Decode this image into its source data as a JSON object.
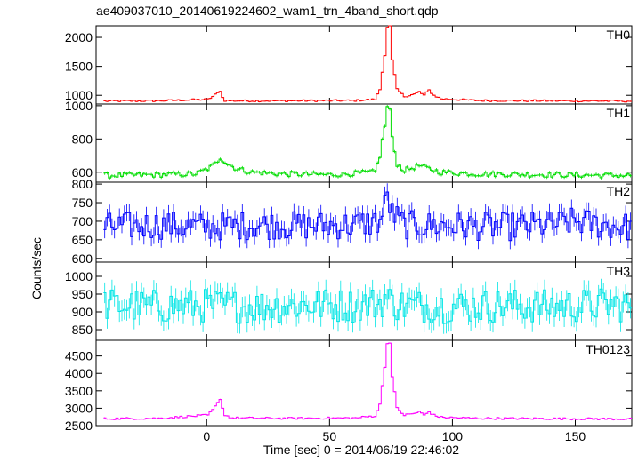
{
  "title": "ae409037010_20140619224602_wam1_trn_4band_short.qdp",
  "ylabel": "Counts/sec",
  "xlabel": "Time [sec] 0 = 2014/06/19 22:46:02",
  "chart_data": {
    "type": "line",
    "title": "ae409037010_20140619224602_wam1_trn_4band_short.qdp",
    "xlabel": "Time [sec] 0 = 2014/06/19 22:46:02",
    "ylabel": "Counts/sec",
    "xlim": [
      -45,
      173
    ],
    "xticks": [
      0,
      50,
      100,
      150
    ],
    "grid": false,
    "legend": "none",
    "panels": [
      {
        "name": "TH0",
        "color": "#ff0000",
        "ylim": [
          850,
          2200
        ],
        "yticks": [
          1000,
          1500,
          2000
        ],
        "x": [
          -42,
          -20,
          0,
          2,
          4,
          5,
          6,
          7,
          10,
          30,
          60,
          68,
          70,
          72,
          73,
          74,
          75,
          77,
          80,
          84,
          86,
          88,
          90,
          92,
          95,
          110,
          140,
          172
        ],
        "values": [
          900,
          905,
          930,
          980,
          1040,
          1080,
          960,
          910,
          905,
          905,
          910,
          930,
          1100,
          1700,
          2180,
          2200,
          1600,
          1100,
          980,
          1020,
          1060,
          1000,
          1090,
          1000,
          940,
          910,
          905,
          900
        ]
      },
      {
        "name": "TH1",
        "color": "#00dd00",
        "ylim": [
          540,
          1010
        ],
        "yticks": [
          600,
          800,
          1000
        ],
        "x": [
          -42,
          -20,
          -5,
          0,
          3,
          5,
          8,
          12,
          18,
          30,
          50,
          68,
          70,
          72,
          73,
          74,
          75,
          77,
          80,
          86,
          90,
          95,
          110,
          140,
          172
        ],
        "values": [
          580,
          585,
          590,
          620,
          650,
          690,
          650,
          620,
          600,
          590,
          585,
          600,
          700,
          880,
          990,
          980,
          800,
          650,
          610,
          640,
          620,
          600,
          590,
          585,
          580
        ]
      },
      {
        "name": "TH2",
        "color": "#0000ff",
        "ylim": [
          590,
          805
        ],
        "yticks": [
          600,
          650,
          700,
          750,
          800
        ],
        "x": [
          -42,
          -20,
          0,
          20,
          40,
          60,
          70,
          72,
          73,
          75,
          80,
          100,
          120,
          140,
          150,
          160,
          172
        ],
        "values": [
          685,
          690,
          685,
          690,
          688,
          690,
          700,
          740,
          770,
          720,
          690,
          688,
          685,
          690,
          700,
          690,
          685
        ]
      },
      {
        "name": "TH3",
        "color": "#00e5e5",
        "ylim": [
          820,
          1040
        ],
        "yticks": [
          850,
          900,
          950,
          1000
        ],
        "x": [
          -42,
          -20,
          0,
          20,
          40,
          60,
          70,
          72,
          75,
          80,
          100,
          120,
          140,
          160,
          172
        ],
        "values": [
          920,
          915,
          918,
          915,
          920,
          918,
          925,
          940,
          925,
          918,
          915,
          918,
          915,
          920,
          918
        ]
      },
      {
        "name": "TH0123",
        "color": "#ff00ff",
        "ylim": [
          2500,
          4950
        ],
        "yticks": [
          2500,
          3000,
          3500,
          4000,
          4500
        ],
        "x": [
          -42,
          -20,
          0,
          2,
          4,
          5,
          6,
          7,
          10,
          30,
          60,
          68,
          70,
          72,
          73,
          74,
          75,
          77,
          80,
          84,
          86,
          88,
          90,
          92,
          95,
          110,
          140,
          172
        ],
        "values": [
          2700,
          2710,
          2800,
          2950,
          3150,
          3280,
          3000,
          2800,
          2720,
          2710,
          2720,
          2780,
          3100,
          4200,
          4850,
          4900,
          3900,
          3000,
          2800,
          2850,
          2900,
          2800,
          2900,
          2800,
          2740,
          2710,
          2700,
          2690
        ]
      }
    ]
  }
}
